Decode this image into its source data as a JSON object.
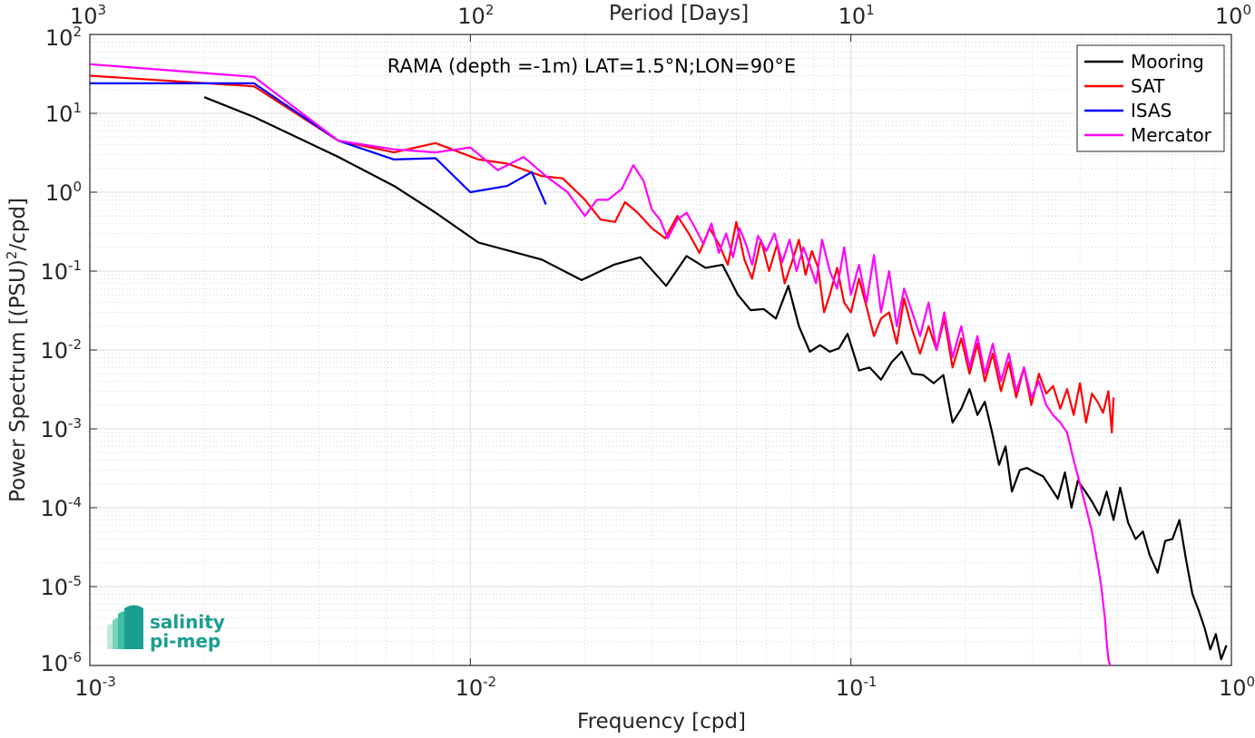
{
  "chart_data": {
    "type": "line",
    "title": "RAMA (depth =-1m) LAT=1.5°N;LON=90°E",
    "xlabel": "Frequency [cpd]",
    "ylabel": "Power Spectrum [(PSU)²/cpd]",
    "ylabel_parts": {
      "main": "Power Spectrum [(PSU)",
      "sup": "2",
      "tail": "/cpd]"
    },
    "top_xlabel": "Period [Days]",
    "xscale": "log",
    "yscale": "log",
    "xlim": [
      0.001,
      1
    ],
    "ylim": [
      1e-06,
      100
    ],
    "grid": true,
    "legend_position": "top-right",
    "x_ticks": [
      {
        "base": "10",
        "exp": "-3",
        "value": 0.001
      },
      {
        "base": "10",
        "exp": "-2",
        "value": 0.01
      },
      {
        "base": "10",
        "exp": "-1",
        "value": 0.1
      },
      {
        "base": "10",
        "exp": "0",
        "value": 1
      }
    ],
    "y_ticks": [
      {
        "base": "10",
        "exp": "2",
        "value": 100
      },
      {
        "base": "10",
        "exp": "1",
        "value": 10
      },
      {
        "base": "10",
        "exp": "0",
        "value": 1
      },
      {
        "base": "10",
        "exp": "-1",
        "value": 0.1
      },
      {
        "base": "10",
        "exp": "-2",
        "value": 0.01
      },
      {
        "base": "10",
        "exp": "-3",
        "value": 0.001
      },
      {
        "base": "10",
        "exp": "-4",
        "value": 0.0001
      },
      {
        "base": "10",
        "exp": "-5",
        "value": 1e-05
      },
      {
        "base": "10",
        "exp": "-6",
        "value": 1e-06
      }
    ],
    "top_ticks": [
      {
        "base": "10",
        "exp": "3",
        "period": 1000
      },
      {
        "base": "10",
        "exp": "2",
        "period": 100
      },
      {
        "base": "10",
        "exp": "1",
        "period": 10
      },
      {
        "base": "10",
        "exp": "0",
        "period": 1
      }
    ],
    "series": [
      {
        "name": "Mooring",
        "color": "#000000",
        "x": [
          0.002,
          0.0027,
          0.0045,
          0.0063,
          0.0081,
          0.0105,
          0.0154,
          0.0196,
          0.0238,
          0.028,
          0.0327,
          0.037,
          0.0415,
          0.046,
          0.0505,
          0.0545,
          0.059,
          0.0635,
          0.0685,
          0.073,
          0.078,
          0.083,
          0.088,
          0.093,
          0.098,
          0.105,
          0.112,
          0.12,
          0.128,
          0.136,
          0.145,
          0.155,
          0.165,
          0.175,
          0.185,
          0.195,
          0.205,
          0.215,
          0.225,
          0.235,
          0.245,
          0.255,
          0.265,
          0.278,
          0.29,
          0.305,
          0.32,
          0.335,
          0.35,
          0.365,
          0.38,
          0.395,
          0.41,
          0.43,
          0.45,
          0.47,
          0.49,
          0.51,
          0.535,
          0.56,
          0.585,
          0.61,
          0.64,
          0.67,
          0.7,
          0.73,
          0.76,
          0.79,
          0.82,
          0.85,
          0.88,
          0.91,
          0.94,
          0.97
        ],
        "y": [
          16.0,
          9.0,
          2.8,
          1.2,
          0.55,
          0.23,
          0.14,
          0.077,
          0.12,
          0.15,
          0.065,
          0.155,
          0.11,
          0.12,
          0.05,
          0.032,
          0.033,
          0.025,
          0.065,
          0.02,
          0.0095,
          0.0115,
          0.0095,
          0.0105,
          0.016,
          0.0055,
          0.006,
          0.0042,
          0.007,
          0.0095,
          0.005,
          0.0048,
          0.0038,
          0.0048,
          0.0012,
          0.0018,
          0.0032,
          0.0015,
          0.0022,
          0.0009,
          0.00035,
          0.0006,
          0.00016,
          0.0003,
          0.00032,
          0.00028,
          0.00025,
          0.00018,
          0.00013,
          0.00028,
          0.0001,
          0.00022,
          0.00017,
          0.00012,
          8e-05,
          0.00016,
          7e-05,
          0.00018,
          6.5e-05,
          4e-05,
          5e-05,
          2.5e-05,
          1.5e-05,
          3.8e-05,
          4e-05,
          7e-05,
          2.2e-05,
          8e-06,
          5e-06,
          3e-06,
          1.6e-06,
          2.5e-06,
          1.2e-06,
          1.8e-06
        ]
      },
      {
        "name": "SAT",
        "color": "#ff0000",
        "x": [
          0.001,
          0.0027,
          0.0045,
          0.0063,
          0.0081,
          0.0105,
          0.0125,
          0.0154,
          0.0175,
          0.02,
          0.022,
          0.024,
          0.0255,
          0.0275,
          0.03,
          0.0325,
          0.035,
          0.0375,
          0.04,
          0.0425,
          0.045,
          0.0475,
          0.05,
          0.0525,
          0.055,
          0.058,
          0.061,
          0.064,
          0.067,
          0.07,
          0.073,
          0.076,
          0.079,
          0.082,
          0.085,
          0.088,
          0.092,
          0.096,
          0.1,
          0.105,
          0.11,
          0.115,
          0.12,
          0.126,
          0.132,
          0.138,
          0.145,
          0.152,
          0.16,
          0.168,
          0.176,
          0.185,
          0.195,
          0.205,
          0.215,
          0.225,
          0.236,
          0.248,
          0.26,
          0.272,
          0.285,
          0.298,
          0.312,
          0.326,
          0.34,
          0.355,
          0.37,
          0.385,
          0.4,
          0.415,
          0.43,
          0.445,
          0.46,
          0.475,
          0.485,
          0.49
        ],
        "y": [
          30.0,
          22.0,
          4.5,
          3.2,
          4.2,
          2.6,
          2.3,
          1.6,
          1.5,
          0.8,
          0.45,
          0.42,
          0.75,
          0.55,
          0.35,
          0.26,
          0.5,
          0.3,
          0.17,
          0.35,
          0.22,
          0.12,
          0.42,
          0.14,
          0.08,
          0.25,
          0.1,
          0.22,
          0.07,
          0.13,
          0.25,
          0.09,
          0.18,
          0.11,
          0.03,
          0.05,
          0.11,
          0.04,
          0.03,
          0.08,
          0.035,
          0.015,
          0.025,
          0.03,
          0.012,
          0.045,
          0.018,
          0.009,
          0.02,
          0.01,
          0.025,
          0.006,
          0.014,
          0.005,
          0.012,
          0.004,
          0.009,
          0.003,
          0.007,
          0.0025,
          0.006,
          0.002,
          0.005,
          0.0028,
          0.0035,
          0.0018,
          0.0032,
          0.0015,
          0.0038,
          0.0012,
          0.0028,
          0.0022,
          0.0016,
          0.003,
          0.0009,
          0.0025
        ]
      },
      {
        "name": "ISAS",
        "color": "#0000ff",
        "x": [
          0.001,
          0.0027,
          0.0045,
          0.0063,
          0.0081,
          0.01,
          0.0125,
          0.0145,
          0.0158
        ],
        "y": [
          24.0,
          24.0,
          4.5,
          2.6,
          2.7,
          1.0,
          1.2,
          1.8,
          0.7
        ]
      },
      {
        "name": "Mercator",
        "color": "#ff00ff",
        "x": [
          0.001,
          0.0027,
          0.0045,
          0.0063,
          0.0081,
          0.01,
          0.0118,
          0.0138,
          0.0158,
          0.018,
          0.02,
          0.0215,
          0.023,
          0.025,
          0.0268,
          0.0285,
          0.03,
          0.0315,
          0.033,
          0.035,
          0.037,
          0.039,
          0.041,
          0.043,
          0.045,
          0.047,
          0.049,
          0.051,
          0.053,
          0.055,
          0.057,
          0.06,
          0.063,
          0.066,
          0.069,
          0.072,
          0.075,
          0.078,
          0.081,
          0.084,
          0.088,
          0.092,
          0.096,
          0.1,
          0.105,
          0.11,
          0.115,
          0.12,
          0.126,
          0.132,
          0.138,
          0.145,
          0.152,
          0.16,
          0.168,
          0.176,
          0.185,
          0.195,
          0.205,
          0.215,
          0.225,
          0.236,
          0.248,
          0.26,
          0.272,
          0.285,
          0.298,
          0.312,
          0.326,
          0.34,
          0.355,
          0.37,
          0.385,
          0.4,
          0.415,
          0.43,
          0.445,
          0.455,
          0.465,
          0.47,
          0.475,
          0.48
        ],
        "y": [
          42.0,
          29.0,
          4.5,
          3.5,
          3.2,
          3.7,
          1.9,
          2.8,
          1.6,
          1.0,
          0.5,
          0.8,
          0.8,
          1.1,
          2.2,
          1.4,
          0.6,
          0.45,
          0.26,
          0.45,
          0.55,
          0.35,
          0.22,
          0.4,
          0.17,
          0.3,
          0.15,
          0.35,
          0.22,
          0.12,
          0.28,
          0.18,
          0.3,
          0.13,
          0.25,
          0.1,
          0.2,
          0.12,
          0.07,
          0.25,
          0.1,
          0.06,
          0.2,
          0.05,
          0.12,
          0.04,
          0.16,
          0.03,
          0.1,
          0.02,
          0.06,
          0.03,
          0.015,
          0.04,
          0.01,
          0.03,
          0.008,
          0.02,
          0.006,
          0.015,
          0.005,
          0.012,
          0.004,
          0.009,
          0.003,
          0.006,
          0.0025,
          0.004,
          0.002,
          0.0015,
          0.0012,
          0.0009,
          0.0004,
          0.0002,
          0.0001,
          5e-05,
          2e-05,
          1e-05,
          4e-06,
          2e-06,
          1.2e-06,
          1e-06
        ]
      }
    ]
  },
  "logo": {
    "line1": "salinity",
    "line2": "pi-mep"
  }
}
